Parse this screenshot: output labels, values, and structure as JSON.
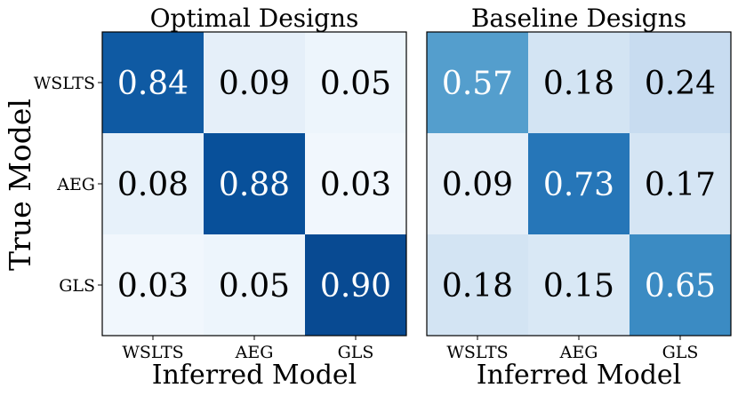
{
  "chart_data": [
    {
      "type": "heatmap",
      "title": "Optimal Designs",
      "xlabel": "Inferred Model",
      "ylabel": "True Model",
      "x_categories": [
        "WSLTS",
        "AEG",
        "GLS"
      ],
      "y_categories": [
        "WSLTS",
        "AEG",
        "GLS"
      ],
      "values": [
        [
          0.84,
          0.09,
          0.05
        ],
        [
          0.08,
          0.88,
          0.03
        ],
        [
          0.03,
          0.05,
          0.9
        ]
      ],
      "labels": [
        [
          "0.84",
          "0.09",
          "0.05"
        ],
        [
          "0.08",
          "0.88",
          "0.03"
        ],
        [
          "0.03",
          "0.05",
          "0.90"
        ]
      ],
      "colormap": "Blues",
      "vrange": [
        0,
        1
      ]
    },
    {
      "type": "heatmap",
      "title": "Baseline Designs",
      "xlabel": "Inferred Model",
      "x_categories": [
        "WSLTS",
        "AEG",
        "GLS"
      ],
      "y_categories": [
        "WSLTS",
        "AEG",
        "GLS"
      ],
      "values": [
        [
          0.57,
          0.18,
          0.24
        ],
        [
          0.09,
          0.73,
          0.17
        ],
        [
          0.18,
          0.15,
          0.65
        ]
      ],
      "labels": [
        [
          "0.57",
          "0.18",
          "0.24"
        ],
        [
          "0.09",
          "0.73",
          "0.17"
        ],
        [
          "0.18",
          "0.15",
          "0.65"
        ]
      ],
      "colormap": "Blues",
      "vrange": [
        0,
        1
      ]
    }
  ]
}
